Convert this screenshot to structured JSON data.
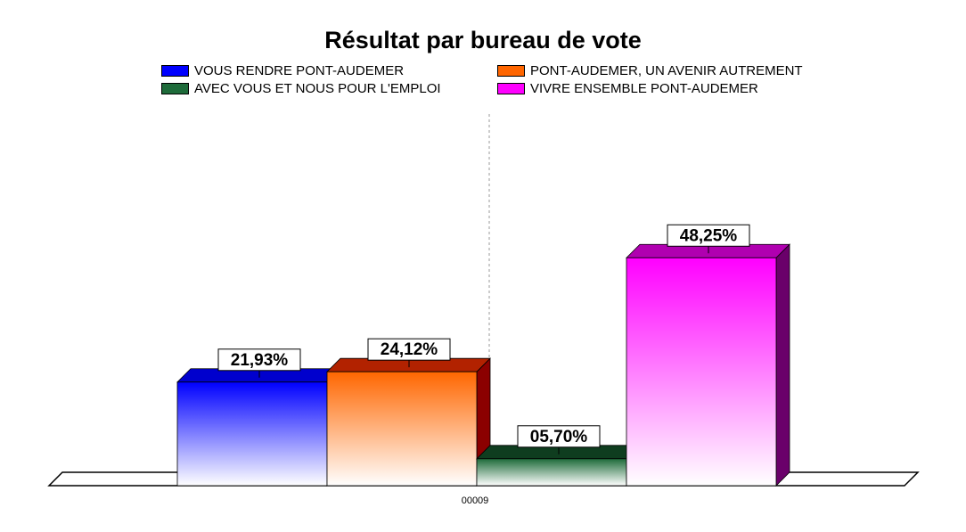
{
  "chart_data": {
    "type": "bar",
    "title": "Résultat par bureau de vote",
    "categories": [
      "00009"
    ],
    "series": [
      {
        "name": "VOUS RENDRE PONT-AUDEMER",
        "values": [
          21.93
        ],
        "label": "21,93%",
        "color": "#0000ff",
        "side_color": "#00008b",
        "top_color": "#0000cd"
      },
      {
        "name": "PONT-AUDEMER, UN AVENIR AUTREMENT",
        "values": [
          24.12
        ],
        "label": "24,12%",
        "color": "#ff6600",
        "side_color": "#8b0000",
        "top_color": "#b22200"
      },
      {
        "name": "AVEC VOUS ET NOUS POUR L'EMPLOI",
        "values": [
          5.7
        ],
        "label": "05,70%",
        "color": "#1e6b3a",
        "side_color": "#0a2a14",
        "top_color": "#0f3d1f"
      },
      {
        "name": "VIVRE ENSEMBLE PONT-AUDEMER",
        "values": [
          48.25
        ],
        "label": "48,25%",
        "color": "#ff00ff",
        "side_color": "#6a006a",
        "top_color": "#b000b0"
      }
    ],
    "ylim": [
      0,
      50
    ],
    "xlabel": "",
    "ylabel": "",
    "legend_position": "top",
    "grid": false
  }
}
